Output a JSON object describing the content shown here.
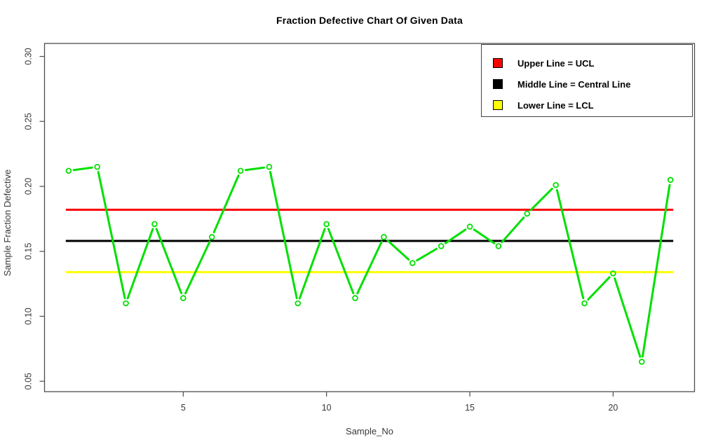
{
  "chart_data": {
    "type": "line",
    "title": "Fraction Defective Chart Of Given Data",
    "xlabel": "Sample_No",
    "ylabel": "Sample Fraction Defective",
    "x": [
      1,
      2,
      3,
      4,
      5,
      6,
      7,
      8,
      9,
      10,
      11,
      12,
      13,
      14,
      15,
      16,
      17,
      18,
      19,
      20,
      21,
      22
    ],
    "series": [
      {
        "name": "Sample Fraction Defective",
        "color": "#00e000",
        "marker": "open-circle",
        "line_style": "segments-with-point-gaps",
        "values": [
          0.212,
          0.215,
          0.11,
          0.171,
          0.114,
          0.161,
          0.212,
          0.215,
          0.11,
          0.171,
          0.114,
          0.161,
          0.141,
          0.154,
          0.169,
          0.154,
          0.179,
          0.201,
          0.11,
          0.133,
          0.065,
          0.205
        ]
      }
    ],
    "reference_lines": [
      {
        "id": "ucl",
        "name": "UCL",
        "label": "Upper Line = UCL",
        "value": 0.182,
        "color": "#ff0000"
      },
      {
        "id": "central",
        "name": "Central Line",
        "label": "Middle Line = Central Line",
        "value": 0.158,
        "color": "#000000"
      },
      {
        "id": "lcl",
        "name": "LCL",
        "label": "Lower Line = LCL",
        "value": 0.134,
        "color": "#ffff00"
      }
    ],
    "x_ticks": [
      5,
      10,
      15,
      20
    ],
    "y_ticks": [
      0.05,
      0.1,
      0.15,
      0.2,
      0.25,
      0.3
    ],
    "xlim": [
      0.16,
      22.84
    ],
    "ylim": [
      0.042,
      0.31
    ],
    "grid": false,
    "legend_position": "top-right",
    "frame_color": "#4d4d4d",
    "background": "#ffffff"
  },
  "legend": {
    "items": [
      {
        "label": "Upper Line = UCL",
        "color": "#ff0000"
      },
      {
        "label": "Middle Line = Central Line",
        "color": "#000000"
      },
      {
        "label": "Lower Line = LCL",
        "color": "#ffff00"
      }
    ]
  }
}
